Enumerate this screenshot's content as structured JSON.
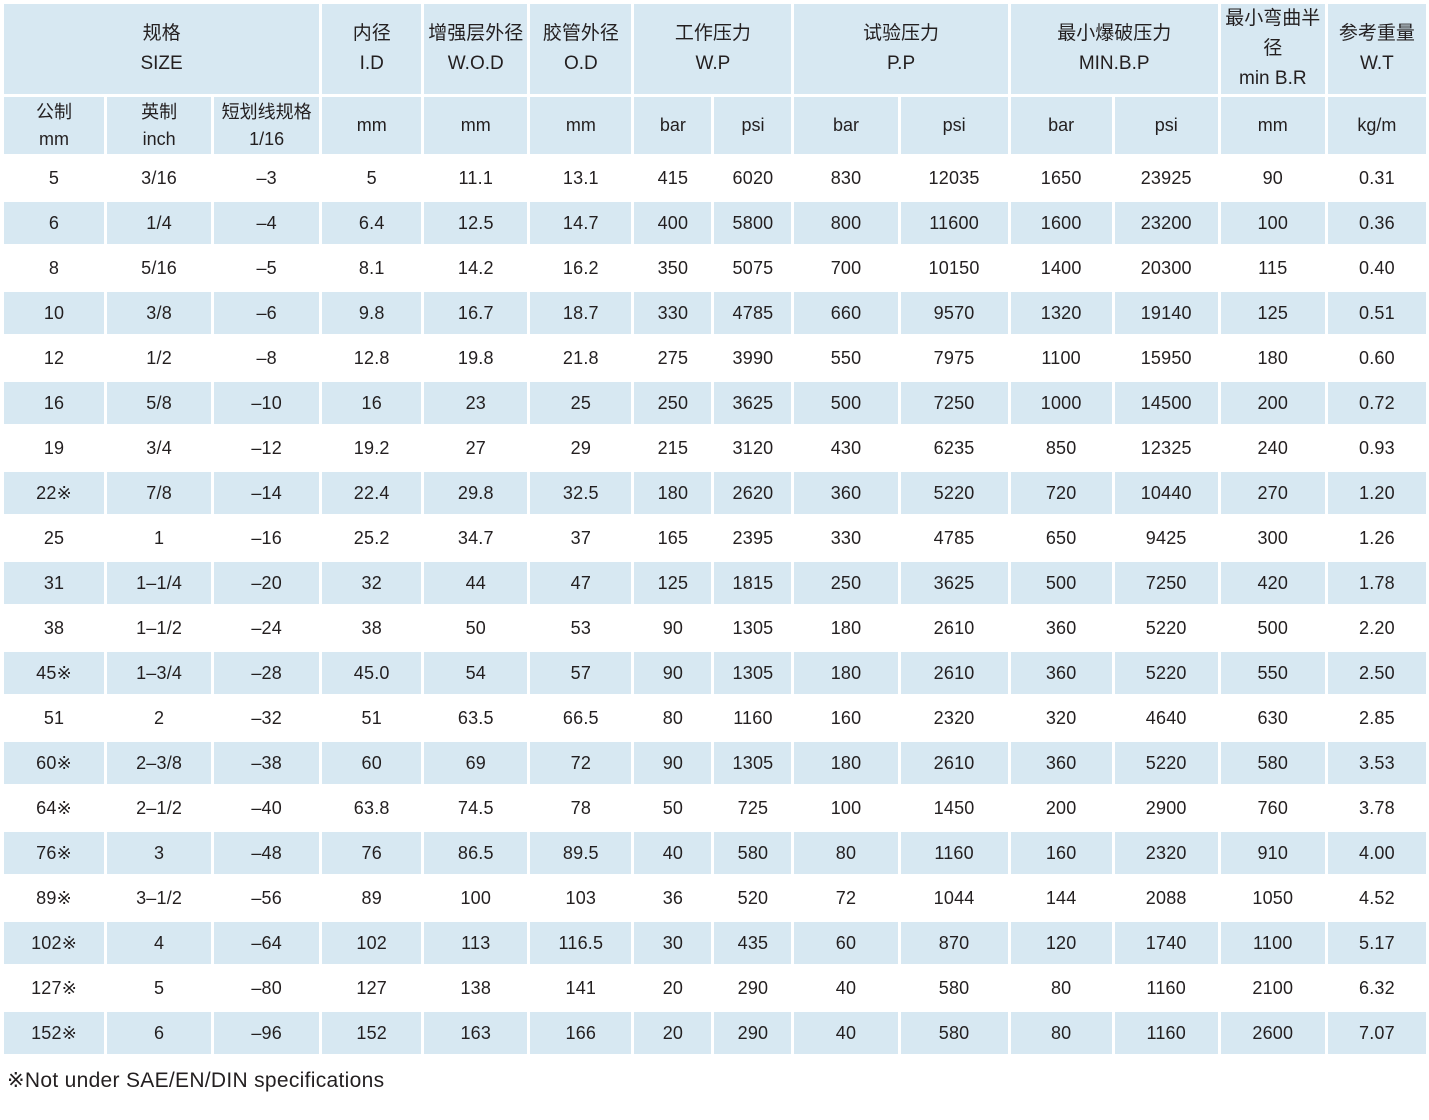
{
  "colors": {
    "cell_blue": "#d7e8f2",
    "text_color": "#231f20",
    "row_alt_white": "#ffffff"
  },
  "table": {
    "header_groups": [
      {
        "lines": [
          "规格",
          "SIZE"
        ],
        "colspan": 3
      },
      {
        "lines": [
          "内径",
          "I.D"
        ],
        "colspan": 1
      },
      {
        "lines": [
          "增强层外径",
          "W.O.D"
        ],
        "colspan": 1
      },
      {
        "lines": [
          "胶管外径",
          "O.D"
        ],
        "colspan": 1
      },
      {
        "lines": [
          "工作压力",
          "W.P"
        ],
        "colspan": 2
      },
      {
        "lines": [
          "试验压力",
          "P.P"
        ],
        "colspan": 2
      },
      {
        "lines": [
          "最小爆破压力",
          "MIN.B.P"
        ],
        "colspan": 2
      },
      {
        "lines": [
          "最小弯曲半径",
          "min B.R"
        ],
        "colspan": 1
      },
      {
        "lines": [
          "参考重量",
          "W.T"
        ],
        "colspan": 1
      }
    ],
    "unit_headers": [
      [
        "公制",
        "mm"
      ],
      [
        "英制",
        "inch"
      ],
      [
        "短划线规格",
        "1/16"
      ],
      [
        "mm"
      ],
      [
        "mm"
      ],
      [
        "mm"
      ],
      [
        "bar"
      ],
      [
        "psi"
      ],
      [
        "bar"
      ],
      [
        "psi"
      ],
      [
        "bar"
      ],
      [
        "psi"
      ],
      [
        "mm"
      ],
      [
        "kg/m"
      ]
    ],
    "rows": [
      [
        "5",
        "3/16",
        "–3",
        "5",
        "11.1",
        "13.1",
        "415",
        "6020",
        "830",
        "12035",
        "1650",
        "23925",
        "90",
        "0.31"
      ],
      [
        "6",
        "1/4",
        "–4",
        "6.4",
        "12.5",
        "14.7",
        "400",
        "5800",
        "800",
        "11600",
        "1600",
        "23200",
        "100",
        "0.36"
      ],
      [
        "8",
        "5/16",
        "–5",
        "8.1",
        "14.2",
        "16.2",
        "350",
        "5075",
        "700",
        "10150",
        "1400",
        "20300",
        "115",
        "0.40"
      ],
      [
        "10",
        "3/8",
        "–6",
        "9.8",
        "16.7",
        "18.7",
        "330",
        "4785",
        "660",
        "9570",
        "1320",
        "19140",
        "125",
        "0.51"
      ],
      [
        "12",
        "1/2",
        "–8",
        "12.8",
        "19.8",
        "21.8",
        "275",
        "3990",
        "550",
        "7975",
        "1100",
        "15950",
        "180",
        "0.60"
      ],
      [
        "16",
        "5/8",
        "–10",
        "16",
        "23",
        "25",
        "250",
        "3625",
        "500",
        "7250",
        "1000",
        "14500",
        "200",
        "0.72"
      ],
      [
        "19",
        "3/4",
        "–12",
        "19.2",
        "27",
        "29",
        "215",
        "3120",
        "430",
        "6235",
        "850",
        "12325",
        "240",
        "0.93"
      ],
      [
        "22※",
        "7/8",
        "–14",
        "22.4",
        "29.8",
        "32.5",
        "180",
        "2620",
        "360",
        "5220",
        "720",
        "10440",
        "270",
        "1.20"
      ],
      [
        "25",
        "1",
        "–16",
        "25.2",
        "34.7",
        "37",
        "165",
        "2395",
        "330",
        "4785",
        "650",
        "9425",
        "300",
        "1.26"
      ],
      [
        "31",
        "1–1/4",
        "–20",
        "32",
        "44",
        "47",
        "125",
        "1815",
        "250",
        "3625",
        "500",
        "7250",
        "420",
        "1.78"
      ],
      [
        "38",
        "1–1/2",
        "–24",
        "38",
        "50",
        "53",
        "90",
        "1305",
        "180",
        "2610",
        "360",
        "5220",
        "500",
        "2.20"
      ],
      [
        "45※",
        "1–3/4",
        "–28",
        "45.0",
        "54",
        "57",
        "90",
        "1305",
        "180",
        "2610",
        "360",
        "5220",
        "550",
        "2.50"
      ],
      [
        "51",
        "2",
        "–32",
        "51",
        "63.5",
        "66.5",
        "80",
        "1160",
        "160",
        "2320",
        "320",
        "4640",
        "630",
        "2.85"
      ],
      [
        "60※",
        "2–3/8",
        "–38",
        "60",
        "69",
        "72",
        "90",
        "1305",
        "180",
        "2610",
        "360",
        "5220",
        "580",
        "3.53"
      ],
      [
        "64※",
        "2–1/2",
        "–40",
        "63.8",
        "74.5",
        "78",
        "50",
        "725",
        "100",
        "1450",
        "200",
        "2900",
        "760",
        "3.78"
      ],
      [
        "76※",
        "3",
        "–48",
        "76",
        "86.5",
        "89.5",
        "40",
        "580",
        "80",
        "1160",
        "160",
        "2320",
        "910",
        "4.00"
      ],
      [
        "89※",
        "3–1/2",
        "–56",
        "89",
        "100",
        "103",
        "36",
        "520",
        "72",
        "1044",
        "144",
        "2088",
        "1050",
        "4.52"
      ],
      [
        "102※",
        "4",
        "–64",
        "102",
        "113",
        "116.5",
        "30",
        "435",
        "60",
        "870",
        "120",
        "1740",
        "1100",
        "5.17"
      ],
      [
        "127※",
        "5",
        "–80",
        "127",
        "138",
        "141",
        "20",
        "290",
        "40",
        "580",
        "80",
        "1160",
        "2100",
        "6.32"
      ],
      [
        "152※",
        "6",
        "–96",
        "152",
        "163",
        "166",
        "20",
        "290",
        "40",
        "580",
        "80",
        "1160",
        "2600",
        "7.07"
      ]
    ],
    "footnote": "※Not under SAE/EN/DIN specifications"
  }
}
